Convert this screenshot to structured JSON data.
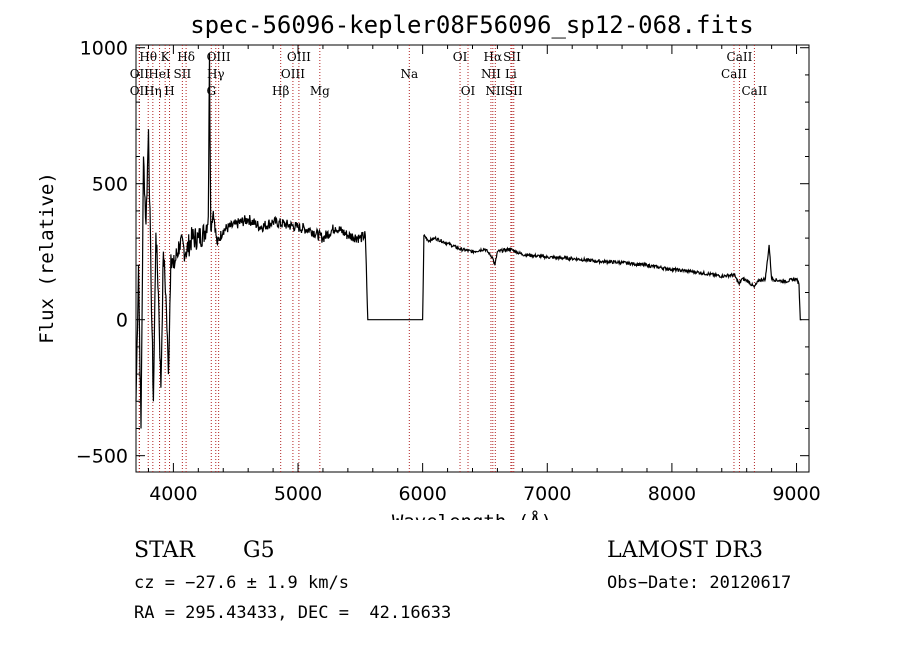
{
  "chart_data": {
    "type": "line",
    "title": "spec-56096-kepler08F56096_sp12-068.fits",
    "xlabel": "Wavelength (Å)",
    "ylabel": "Flux (relative)",
    "xlim": [
      3700,
      9100
    ],
    "ylim": [
      -560,
      1010
    ],
    "x_ticks": [
      4000,
      5000,
      6000,
      7000,
      8000,
      9000
    ],
    "x_tick_labels": [
      "4000",
      "5000",
      "6000",
      "7000",
      "8000",
      "9000"
    ],
    "y_ticks": [
      -500,
      0,
      500,
      1000
    ],
    "y_tick_labels": [
      "−500",
      "0",
      "500",
      "1000"
    ],
    "grid": false,
    "series": [
      {
        "name": "flux",
        "x": [
          3700,
          3720,
          3740,
          3760,
          3780,
          3800,
          3820,
          3840,
          3860,
          3880,
          3900,
          3920,
          3940,
          3960,
          3980,
          4000,
          4050,
          4100,
          4150,
          4200,
          4250,
          4280,
          4290,
          4300,
          4320,
          4350,
          4400,
          4500,
          4600,
          4700,
          4800,
          4900,
          5000,
          5100,
          5200,
          5300,
          5400,
          5500,
          5540,
          5560,
          6000,
          6010,
          6050,
          6100,
          6200,
          6300,
          6400,
          6500,
          6560,
          6580,
          6600,
          6700,
          6800,
          7000,
          7200,
          7400,
          7600,
          7800,
          8000,
          8200,
          8400,
          8500,
          8540,
          8560,
          8600,
          8660,
          8700,
          8750,
          8780,
          8800,
          8900,
          9000,
          9020,
          9030,
          9040
        ],
        "y": [
          -300,
          200,
          -400,
          600,
          350,
          700,
          150,
          -300,
          320,
          100,
          -250,
          250,
          90,
          -200,
          240,
          190,
          280,
          250,
          300,
          300,
          320,
          380,
          980,
          330,
          400,
          280,
          330,
          350,
          370,
          340,
          360,
          350,
          340,
          330,
          300,
          340,
          310,
          300,
          310,
          0,
          0,
          310,
          290,
          300,
          280,
          260,
          250,
          260,
          230,
          200,
          250,
          260,
          240,
          230,
          225,
          215,
          210,
          200,
          185,
          175,
          160,
          165,
          130,
          150,
          145,
          120,
          145,
          150,
          275,
          150,
          140,
          150,
          130,
          0,
          0
        ]
      }
    ],
    "spectral_lines": [
      {
        "label": "Hθ",
        "x": 3798,
        "tier": 0
      },
      {
        "label": "OII",
        "x": 3727,
        "tier": 1
      },
      {
        "label": "OII",
        "x": 3727,
        "tier": 2
      },
      {
        "label": "Hη",
        "x": 3835,
        "tier": 2
      },
      {
        "label": "K",
        "x": 3934,
        "tier": 0
      },
      {
        "label": "HeI",
        "x": 3889,
        "tier": 1
      },
      {
        "label": "H",
        "x": 3969,
        "tier": 2
      },
      {
        "label": "SII",
        "x": 4072,
        "tier": 1
      },
      {
        "label": "Hδ",
        "x": 4102,
        "tier": 0
      },
      {
        "label": "OIII",
        "x": 4363,
        "tier": 0
      },
      {
        "label": "Hγ",
        "x": 4340,
        "tier": 1
      },
      {
        "label": "G",
        "x": 4304,
        "tier": 2
      },
      {
        "label": "Hβ",
        "x": 4861,
        "tier": 2
      },
      {
        "label": "OIII",
        "x": 4959,
        "tier": 1
      },
      {
        "label": "OIII",
        "x": 5007,
        "tier": 0
      },
      {
        "label": "Mg",
        "x": 5175,
        "tier": 2
      },
      {
        "label": "Na",
        "x": 5893,
        "tier": 1
      },
      {
        "label": "OI",
        "x": 6300,
        "tier": 0
      },
      {
        "label": "OI",
        "x": 6364,
        "tier": 2
      },
      {
        "label": "Hα",
        "x": 6563,
        "tier": 0
      },
      {
        "label": "NII",
        "x": 6548,
        "tier": 1
      },
      {
        "label": "NII",
        "x": 6583,
        "tier": 2
      },
      {
        "label": "SII",
        "x": 6717,
        "tier": 0
      },
      {
        "label": "Li",
        "x": 6708,
        "tier": 1
      },
      {
        "label": "SII",
        "x": 6731,
        "tier": 2
      },
      {
        "label": "CaII",
        "x": 8542,
        "tier": 0
      },
      {
        "label": "CaII",
        "x": 8498,
        "tier": 1
      },
      {
        "label": "CaII",
        "x": 8662,
        "tier": 2
      }
    ]
  },
  "footer": {
    "class_label": "STAR",
    "subclass": "G5",
    "survey": "LAMOST DR3",
    "cz": "cz = −27.6 ± 1.9 km/s",
    "obs_date": "Obs−Date: 20120617",
    "coords": "RA = 295.43433, DEC =  42.16633"
  }
}
